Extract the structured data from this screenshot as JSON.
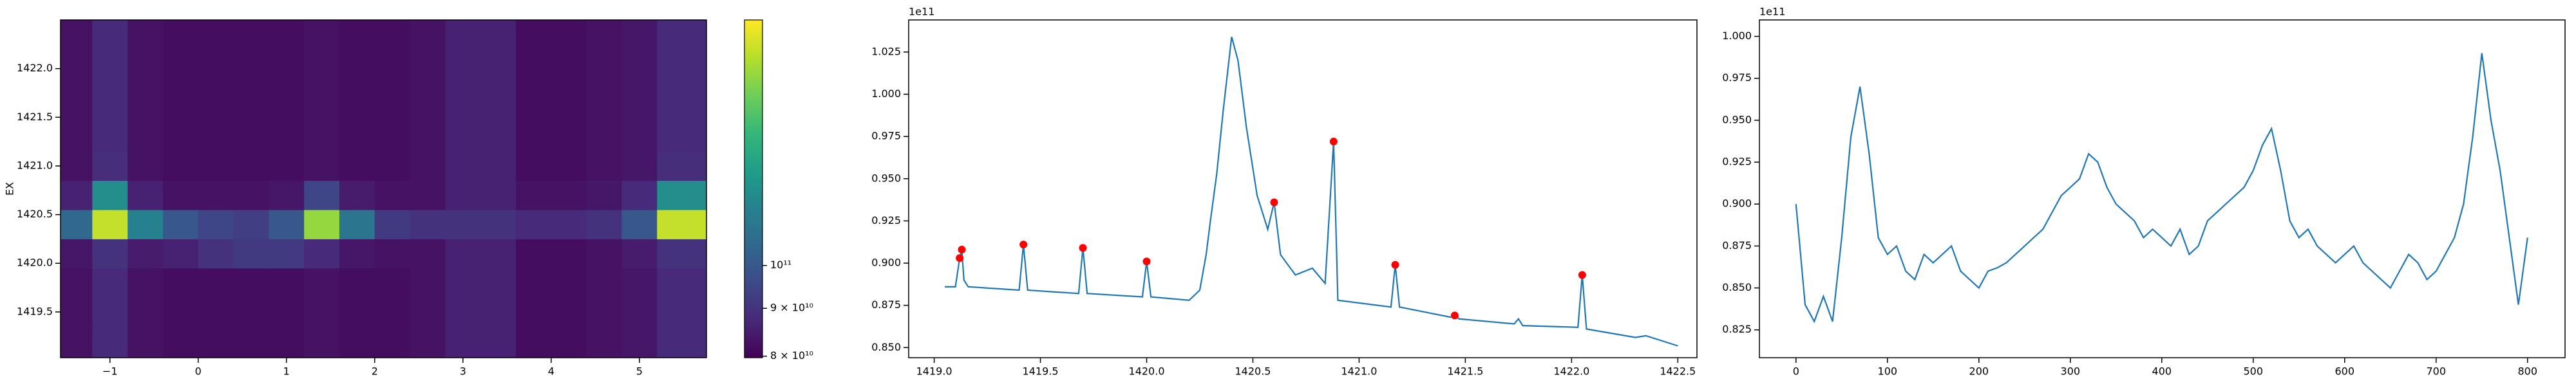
{
  "chart_data": [
    {
      "type": "heatmap",
      "colormap": "viridis",
      "ylabel": "EX",
      "x": [
        -1.4,
        -1.0,
        -0.6,
        -0.2,
        0.2,
        0.6,
        1.0,
        1.4,
        1.8,
        2.2,
        2.6,
        3.0,
        3.4,
        3.8,
        4.2,
        4.6,
        5.0,
        5.4
      ],
      "y": [
        1419.2,
        1419.5,
        1419.8,
        1420.1,
        1420.4,
        1420.7,
        1421.0,
        1421.3,
        1421.6,
        1421.9,
        1422.2
      ],
      "values": [
        [
          83000000000.0,
          88000000000.0,
          83000000000.0,
          82000000000.0,
          82000000000.0,
          82000000000.0,
          82000000000.0,
          83000000000.0,
          82000000000.0,
          82000000000.0,
          83000000000.0,
          86000000000.0,
          86000000000.0,
          82000000000.0,
          82000000000.0,
          83000000000.0,
          84000000000.0,
          88000000000.0
        ],
        [
          83000000000.0,
          88000000000.0,
          83000000000.0,
          82000000000.0,
          82000000000.0,
          82000000000.0,
          82000000000.0,
          83000000000.0,
          82000000000.0,
          82000000000.0,
          83000000000.0,
          86000000000.0,
          86000000000.0,
          82000000000.0,
          82000000000.0,
          83000000000.0,
          84000000000.0,
          88000000000.0
        ],
        [
          83000000000.0,
          88000000000.0,
          83000000000.0,
          82000000000.0,
          82000000000.0,
          82000000000.0,
          82000000000.0,
          83000000000.0,
          82000000000.0,
          82000000000.0,
          83000000000.0,
          86000000000.0,
          86000000000.0,
          82000000000.0,
          82000000000.0,
          83000000000.0,
          84000000000.0,
          88000000000.0
        ],
        [
          84000000000.0,
          90000000000.0,
          85000000000.0,
          86000000000.0,
          90000000000.0,
          92000000000.0,
          92000000000.0,
          88000000000.0,
          84000000000.0,
          83000000000.0,
          83000000000.0,
          86000000000.0,
          86000000000.0,
          82000000000.0,
          82000000000.0,
          83000000000.0,
          85000000000.0,
          90000000000.0
        ],
        [
          105000000000.0,
          170000000000.0,
          115000000000.0,
          100000000000.0,
          95000000000.0,
          93000000000.0,
          100000000000.0,
          160000000000.0,
          110000000000.0,
          92000000000.0,
          90000000000.0,
          90000000000.0,
          90000000000.0,
          88000000000.0,
          88000000000.0,
          90000000000.0,
          100000000000.0,
          170000000000.0
        ],
        [
          86000000000.0,
          120000000000.0,
          86000000000.0,
          83000000000.0,
          83000000000.0,
          83000000000.0,
          84000000000.0,
          95000000000.0,
          85000000000.0,
          83000000000.0,
          83000000000.0,
          86000000000.0,
          86000000000.0,
          83000000000.0,
          83000000000.0,
          84000000000.0,
          88000000000.0,
          120000000000.0
        ],
        [
          83000000000.0,
          89000000000.0,
          83000000000.0,
          82000000000.0,
          82000000000.0,
          82000000000.0,
          82000000000.0,
          83000000000.0,
          82000000000.0,
          82000000000.0,
          83000000000.0,
          86000000000.0,
          86000000000.0,
          82000000000.0,
          82000000000.0,
          83000000000.0,
          84000000000.0,
          89000000000.0
        ],
        [
          83000000000.0,
          88000000000.0,
          83000000000.0,
          82000000000.0,
          82000000000.0,
          82000000000.0,
          82000000000.0,
          83000000000.0,
          82000000000.0,
          82000000000.0,
          83000000000.0,
          86000000000.0,
          86000000000.0,
          82000000000.0,
          82000000000.0,
          83000000000.0,
          84000000000.0,
          88000000000.0
        ],
        [
          83000000000.0,
          88000000000.0,
          83000000000.0,
          82000000000.0,
          82000000000.0,
          82000000000.0,
          82000000000.0,
          83000000000.0,
          82000000000.0,
          82000000000.0,
          83000000000.0,
          86000000000.0,
          86000000000.0,
          82000000000.0,
          82000000000.0,
          83000000000.0,
          84000000000.0,
          88000000000.0
        ],
        [
          83000000000.0,
          88000000000.0,
          83000000000.0,
          82000000000.0,
          82000000000.0,
          82000000000.0,
          82000000000.0,
          83000000000.0,
          82000000000.0,
          82000000000.0,
          83000000000.0,
          86000000000.0,
          86000000000.0,
          82000000000.0,
          82000000000.0,
          83000000000.0,
          84000000000.0,
          88000000000.0
        ],
        [
          83000000000.0,
          88000000000.0,
          83000000000.0,
          82000000000.0,
          82000000000.0,
          82000000000.0,
          82000000000.0,
          83000000000.0,
          82000000000.0,
          82000000000.0,
          83000000000.0,
          86000000000.0,
          86000000000.0,
          82000000000.0,
          82000000000.0,
          83000000000.0,
          84000000000.0,
          88000000000.0
        ]
      ],
      "xlim": [
        -1.56,
        5.76
      ],
      "ylim": [
        1419.03,
        1422.5
      ],
      "xticks": [
        {
          "value": -1,
          "label": "−1"
        },
        0,
        1,
        2,
        3,
        4,
        5
      ],
      "yticks": [
        {
          "value": 1419.5,
          "label": "1419.5"
        },
        {
          "value": 1420.0,
          "label": "1420.0"
        },
        {
          "value": 1420.5,
          "label": "1420.5"
        },
        {
          "value": 1421.0,
          "label": "1421.0"
        },
        {
          "value": 1421.5,
          "label": "1421.5"
        },
        {
          "value": 1422.0,
          "label": "1422.0"
        }
      ],
      "colorbar": {
        "scale": "log",
        "lim": [
          79700000000.0,
          183000000000.0
        ],
        "ticks": [
          {
            "value": 80000000000.0,
            "label": "8 × 10¹⁰"
          },
          {
            "value": 90000000000.0,
            "label": "9 × 10¹⁰"
          },
          {
            "value": 100000000000.0,
            "label": "10¹¹"
          }
        ]
      }
    },
    {
      "type": "line",
      "offset_label": "1e11",
      "color": "#1f77b4",
      "x": [
        1419.05,
        1419.1,
        1419.12,
        1419.13,
        1419.14,
        1419.16,
        1419.4,
        1419.42,
        1419.44,
        1419.68,
        1419.7,
        1419.72,
        1419.98,
        1420.0,
        1420.02,
        1420.2,
        1420.25,
        1420.28,
        1420.3,
        1420.33,
        1420.36,
        1420.4,
        1420.43,
        1420.47,
        1420.52,
        1420.57,
        1420.6,
        1420.63,
        1420.7,
        1420.78,
        1420.84,
        1420.88,
        1420.9,
        1421.15,
        1421.17,
        1421.19,
        1421.43,
        1421.45,
        1421.47,
        1421.73,
        1421.75,
        1421.77,
        1422.03,
        1422.05,
        1422.07,
        1422.3,
        1422.35,
        1422.5
      ],
      "values": [
        0.886,
        0.886,
        0.903,
        0.908,
        0.89,
        0.886,
        0.884,
        0.911,
        0.884,
        0.882,
        0.909,
        0.882,
        0.88,
        0.901,
        0.88,
        0.878,
        0.884,
        0.905,
        0.925,
        0.953,
        0.99,
        1.034,
        1.02,
        0.98,
        0.94,
        0.92,
        0.936,
        0.905,
        0.893,
        0.897,
        0.888,
        0.972,
        0.878,
        0.874,
        0.899,
        0.874,
        0.868,
        0.869,
        0.867,
        0.864,
        0.867,
        0.863,
        0.862,
        0.893,
        0.861,
        0.856,
        0.857,
        0.851
      ],
      "markers": {
        "color": "#ff0000",
        "x": [
          1419.12,
          1419.13,
          1419.42,
          1419.7,
          1420.0,
          1420.6,
          1420.88,
          1421.17,
          1421.45,
          1422.05
        ],
        "values": [
          0.903,
          0.908,
          0.911,
          0.909,
          0.901,
          0.936,
          0.972,
          0.899,
          0.869,
          0.893
        ]
      },
      "xlim": [
        1418.88,
        1422.59
      ],
      "ylim": [
        0.844,
        1.044
      ],
      "xticks": [
        {
          "value": 1419.0,
          "label": "1419.0"
        },
        {
          "value": 1419.5,
          "label": "1419.5"
        },
        {
          "value": 1420.0,
          "label": "1420.0"
        },
        {
          "value": 1420.5,
          "label": "1420.5"
        },
        {
          "value": 1421.0,
          "label": "1421.0"
        },
        {
          "value": 1421.5,
          "label": "1421.5"
        },
        {
          "value": 1422.0,
          "label": "1422.0"
        },
        {
          "value": 1422.5,
          "label": "1422.5"
        }
      ],
      "yticks": [
        {
          "value": 0.85,
          "label": "0.850"
        },
        0.875,
        {
          "value": 0.9,
          "label": "0.900"
        },
        0.925,
        {
          "value": 0.95,
          "label": "0.950"
        },
        0.975,
        {
          "value": 1.0,
          "label": "1.000"
        },
        1.025
      ]
    },
    {
      "type": "line",
      "offset_label": "1e11",
      "color": "#1f77b4",
      "x": [
        0,
        10,
        20,
        30,
        40,
        50,
        60,
        70,
        80,
        90,
        100,
        110,
        120,
        130,
        140,
        150,
        160,
        170,
        180,
        190,
        200,
        210,
        220,
        230,
        240,
        250,
        260,
        270,
        280,
        290,
        300,
        310,
        320,
        330,
        340,
        350,
        360,
        370,
        380,
        390,
        400,
        410,
        420,
        430,
        440,
        450,
        460,
        470,
        480,
        490,
        500,
        510,
        520,
        530,
        540,
        550,
        560,
        570,
        580,
        590,
        600,
        610,
        620,
        630,
        640,
        650,
        660,
        670,
        680,
        690,
        700,
        710,
        720,
        730,
        740,
        750,
        760,
        770,
        780,
        790,
        800
      ],
      "values": [
        0.9,
        0.84,
        0.83,
        0.845,
        0.83,
        0.88,
        0.94,
        0.97,
        0.93,
        0.88,
        0.87,
        0.875,
        0.86,
        0.855,
        0.87,
        0.865,
        0.87,
        0.875,
        0.86,
        0.855,
        0.85,
        0.86,
        0.862,
        0.865,
        0.87,
        0.875,
        0.88,
        0.885,
        0.895,
        0.905,
        0.91,
        0.915,
        0.93,
        0.925,
        0.91,
        0.9,
        0.895,
        0.89,
        0.88,
        0.885,
        0.88,
        0.875,
        0.885,
        0.87,
        0.875,
        0.89,
        0.895,
        0.9,
        0.905,
        0.91,
        0.92,
        0.935,
        0.945,
        0.92,
        0.89,
        0.88,
        0.885,
        0.875,
        0.87,
        0.865,
        0.87,
        0.875,
        0.865,
        0.86,
        0.855,
        0.85,
        0.86,
        0.87,
        0.865,
        0.855,
        0.86,
        0.87,
        0.88,
        0.9,
        0.94,
        0.99,
        0.95,
        0.92,
        0.88,
        0.84,
        0.88
      ],
      "xlim": [
        -40,
        841
      ],
      "ylim": [
        0.8084,
        1.0098
      ],
      "xticks": [
        0,
        100,
        200,
        300,
        400,
        500,
        600,
        700,
        800
      ],
      "yticks": [
        0.825,
        {
          "value": 0.85,
          "label": "0.850"
        },
        0.875,
        {
          "value": 0.9,
          "label": "0.900"
        },
        0.925,
        {
          "value": 0.95,
          "label": "0.950"
        },
        0.975,
        {
          "value": 1.0,
          "label": "1.000"
        }
      ]
    }
  ]
}
